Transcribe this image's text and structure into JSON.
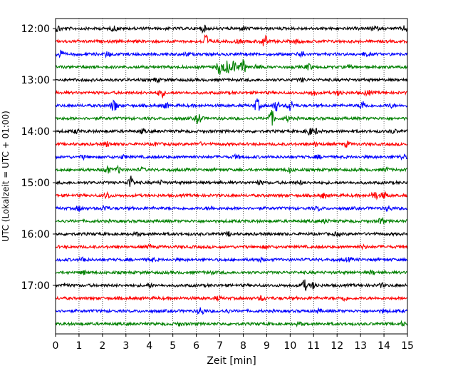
{
  "chart_data": {
    "type": "line",
    "title": "",
    "xlabel": "Zeit  [min]",
    "ylabel": "UTC (Lokalzeit = UTC + 01:00)",
    "xlim": [
      0,
      15
    ],
    "x_ticks": [
      "0",
      "1",
      "2",
      "3",
      "4",
      "5",
      "6",
      "7",
      "8",
      "9",
      "10",
      "11",
      "12",
      "13",
      "14",
      "15"
    ],
    "y_ticks": [
      {
        "label": "12:00",
        "row": 0
      },
      {
        "label": "13:00",
        "row": 4
      },
      {
        "label": "14:00",
        "row": 8
      },
      {
        "label": "15:00",
        "row": 12
      },
      {
        "label": "16:00",
        "row": 16
      },
      {
        "label": "17:00",
        "row": 20
      }
    ],
    "grid": "vertical dotted",
    "trace_colors": [
      "#000000",
      "#ff0000",
      "#0000ff",
      "#008000"
    ],
    "traces": [
      {
        "start": "12:00",
        "events": [
          [
            0.1,
            4
          ],
          [
            2.5,
            3
          ],
          [
            6.3,
            4
          ],
          [
            8.0,
            2
          ],
          [
            13.6,
            3
          ],
          [
            14.9,
            3
          ]
        ]
      },
      {
        "start": "12:15",
        "events": [
          [
            6.4,
            9
          ],
          [
            7.8,
            2
          ],
          [
            8.9,
            8
          ],
          [
            10.3,
            2
          ]
        ]
      },
      {
        "start": "12:30",
        "events": [
          [
            0.2,
            5
          ],
          [
            2.2,
            3
          ],
          [
            5.6,
            2
          ],
          [
            10.5,
            4
          ],
          [
            13.2,
            2
          ]
        ]
      },
      {
        "start": "12:45",
        "events": [
          [
            7.0,
            10
          ],
          [
            7.3,
            8
          ],
          [
            7.6,
            8
          ],
          [
            8.0,
            9
          ],
          [
            8.6,
            3
          ],
          [
            10.8,
            4
          ],
          [
            12.5,
            2
          ]
        ]
      },
      {
        "start": "13:00",
        "events": [
          [
            4.3,
            2
          ],
          [
            10.5,
            2
          ]
        ]
      },
      {
        "start": "13:15",
        "events": [
          [
            4.5,
            6
          ],
          [
            11.0,
            3
          ],
          [
            12.1,
            3
          ],
          [
            13.3,
            3
          ]
        ]
      },
      {
        "start": "13:30",
        "events": [
          [
            2.5,
            8
          ],
          [
            4.7,
            3
          ],
          [
            8.6,
            8
          ],
          [
            9.4,
            7
          ],
          [
            10.0,
            7
          ],
          [
            13.1,
            6
          ],
          [
            14.3,
            2
          ]
        ]
      },
      {
        "start": "13:45",
        "events": [
          [
            6.1,
            7
          ],
          [
            9.2,
            10
          ],
          [
            9.9,
            3
          ]
        ]
      },
      {
        "start": "14:00",
        "events": [
          [
            0.9,
            2
          ],
          [
            3.7,
            2
          ],
          [
            10.8,
            5
          ],
          [
            11.1,
            3
          ],
          [
            14.4,
            2
          ]
        ]
      },
      {
        "start": "14:15",
        "events": [
          [
            2.2,
            3
          ],
          [
            4.3,
            2
          ],
          [
            6.1,
            2
          ],
          [
            11.1,
            2
          ],
          [
            12.4,
            3
          ]
        ]
      },
      {
        "start": "14:30",
        "events": [
          [
            1.2,
            2
          ],
          [
            2.9,
            2
          ],
          [
            7.7,
            2
          ],
          [
            11.2,
            2
          ],
          [
            14.8,
            3
          ]
        ]
      },
      {
        "start": "14:45",
        "events": [
          [
            2.2,
            5
          ],
          [
            2.7,
            4
          ],
          [
            3.7,
            2
          ],
          [
            10.0,
            3
          ],
          [
            14.1,
            2
          ]
        ]
      },
      {
        "start": "15:00",
        "events": [
          [
            3.2,
            8
          ],
          [
            4.5,
            2
          ],
          [
            8.7,
            2
          ],
          [
            10.4,
            2
          ]
        ]
      },
      {
        "start": "15:15",
        "events": [
          [
            2.2,
            4
          ],
          [
            11.4,
            3
          ],
          [
            13.6,
            6
          ],
          [
            14.0,
            4
          ]
        ]
      },
      {
        "start": "15:30",
        "events": [
          [
            1.0,
            3
          ],
          [
            2.1,
            4
          ],
          [
            6.6,
            2
          ],
          [
            11.2,
            2
          ],
          [
            14.2,
            3
          ]
        ]
      },
      {
        "start": "15:45",
        "events": [
          [
            11.5,
            2
          ],
          [
            13.9,
            4
          ]
        ]
      },
      {
        "start": "16:00",
        "events": [
          [
            3.5,
            2
          ],
          [
            7.4,
            2
          ],
          [
            12.0,
            2
          ]
        ]
      },
      {
        "start": "16:15",
        "events": [
          [
            4.0,
            2
          ],
          [
            9.0,
            2
          ],
          [
            13.1,
            2
          ]
        ]
      },
      {
        "start": "16:30",
        "events": [
          [
            1.2,
            3
          ],
          [
            4.1,
            2
          ],
          [
            8.7,
            2
          ],
          [
            12.5,
            2
          ]
        ]
      },
      {
        "start": "16:45",
        "events": [
          [
            1.2,
            2
          ],
          [
            6.6,
            2
          ],
          [
            13.5,
            2
          ]
        ]
      },
      {
        "start": "17:00",
        "events": [
          [
            0.4,
            2
          ],
          [
            4.0,
            2
          ],
          [
            10.6,
            7
          ],
          [
            11.0,
            4
          ],
          [
            13.9,
            2
          ]
        ]
      },
      {
        "start": "17:15",
        "events": [
          [
            6.9,
            2
          ],
          [
            8.8,
            3
          ],
          [
            12.3,
            3
          ]
        ]
      },
      {
        "start": "17:30",
        "events": [
          [
            6.2,
            5
          ],
          [
            7.3,
            2
          ],
          [
            11.2,
            2
          ],
          [
            14.0,
            2
          ]
        ]
      },
      {
        "start": "17:45",
        "events": [
          [
            5.3,
            2
          ],
          [
            10.4,
            2
          ],
          [
            14.8,
            2
          ]
        ]
      }
    ]
  }
}
